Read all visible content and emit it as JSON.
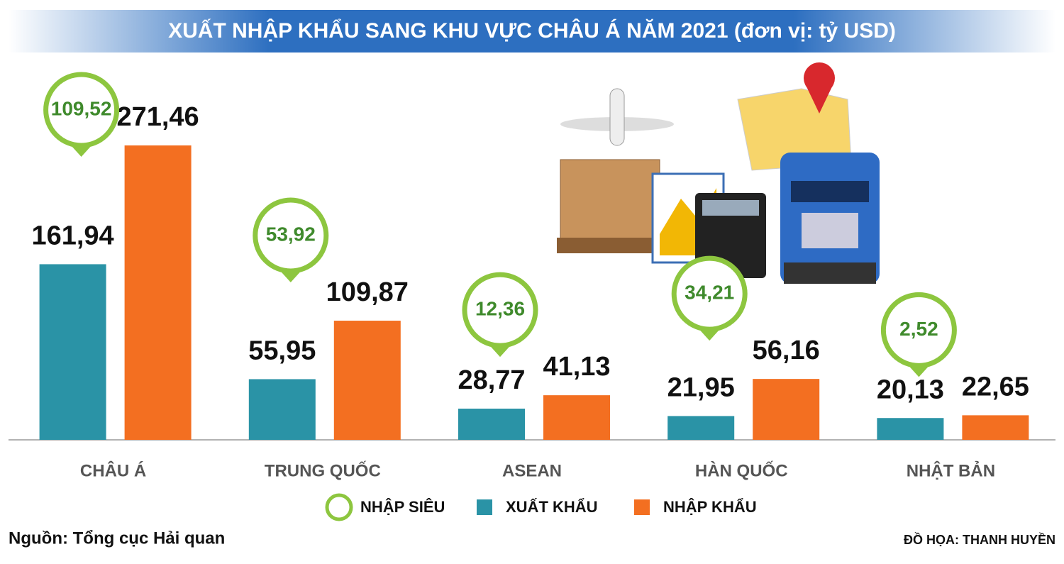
{
  "chart_data": {
    "type": "bar",
    "title": "XUẤT NHẬP KHẨU SANG KHU VỰC CHÂU Á NĂM 2021 (đơn vị: tỷ USD)",
    "categories": [
      "CHÂU Á",
      "TRUNG QUỐC",
      "ASEAN",
      "HÀN QUỐC",
      "NHẬT BẢN"
    ],
    "series": [
      {
        "name": "XUẤT KHẨU",
        "color": "#2a93a6",
        "values": [
          161.94,
          55.95,
          28.77,
          21.95,
          20.13
        ],
        "value_labels": [
          "161,94",
          "55,95",
          "28,77",
          "21,95",
          "20,13"
        ]
      },
      {
        "name": "NHẬP KHẨU",
        "color": "#f36f21",
        "values": [
          271.46,
          109.87,
          41.13,
          56.16,
          22.65
        ],
        "value_labels": [
          "271,46",
          "109,87",
          "41,13",
          "56,16",
          "22,65"
        ]
      },
      {
        "name": "NHẬP SIÊU",
        "type": "callout",
        "color": "#8dc63f",
        "values": [
          109.52,
          53.92,
          12.36,
          34.21,
          2.52
        ],
        "value_labels": [
          "109,52",
          "53,92",
          "12,36",
          "34,21",
          "2,52"
        ]
      }
    ],
    "source": "Nguồn: Tổng cục Hải quan",
    "credit": "ĐỒ HỌA: THANH HUYỀN"
  }
}
